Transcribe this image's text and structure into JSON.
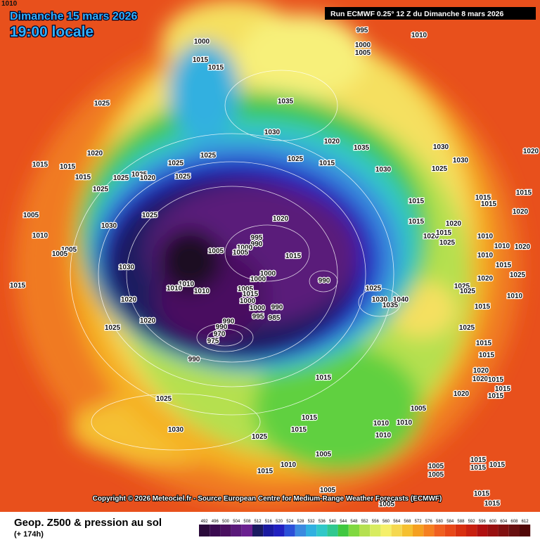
{
  "header": {
    "date": "Dimanche 15 mars 2026",
    "time": "19:00 locale",
    "run": "Run ECMWF 0.25° 12 Z du Dimanche 8 mars 2026",
    "corner": "1010"
  },
  "footer": {
    "copyright": "Copyright © 2026 Meteociel.fr - Source European Centre for Medium-Range Weather Forecasts (ECMWF)"
  },
  "legend": {
    "title": "Geop. Z500 & pression au sol",
    "subtitle": "(+ 174h)",
    "scale": [
      492,
      496,
      500,
      504,
      508,
      512,
      516,
      520,
      524,
      528,
      532,
      536,
      540,
      544,
      548,
      552,
      556,
      560,
      564,
      568,
      572,
      576,
      580,
      584,
      588,
      592,
      596,
      600,
      604,
      608,
      612
    ],
    "colors": [
      "#2a0a3a",
      "#3a0a50",
      "#4a1060",
      "#5a1a7a",
      "#6a2090",
      "#1a1a60",
      "#1a1aa0",
      "#2020c0",
      "#2a50d8",
      "#3a8ae0",
      "#30b0e0",
      "#30c8c8",
      "#30c890",
      "#40c840",
      "#80d840",
      "#b5e050",
      "#d8ec60",
      "#f5f06a",
      "#f5d850",
      "#f5c030",
      "#f5a020",
      "#f58020",
      "#f06020",
      "#e84818",
      "#d83010",
      "#c82010",
      "#b01010",
      "#981010",
      "#801010",
      "#681010",
      "#500808"
    ]
  },
  "isobars": [
    "995",
    "1010",
    "1000",
    "1005",
    "1000",
    "1015",
    "1015",
    "1025",
    "1035",
    "1030",
    "1020",
    "1035",
    "1030",
    "1030",
    "1020",
    "1020",
    "1015",
    "1015",
    "1025",
    "1025",
    "1025",
    "1020",
    "1025",
    "1015",
    "1025",
    "1025",
    "1015",
    "1025",
    "1030",
    "1025",
    "1015",
    "1015",
    "1015",
    "1015",
    "1025",
    "1020",
    "1030",
    "1020",
    "1015",
    "1020",
    "1005",
    "1010",
    "1020",
    "1015",
    "1025",
    "995",
    "990",
    "1000",
    "1005",
    "1005",
    "1010",
    "1010",
    "1020",
    "1005",
    "1005",
    "1015",
    "1030",
    "1010",
    "1015",
    "1000",
    "1000",
    "990",
    "1020",
    "1025",
    "1015",
    "1010",
    "1010",
    "1010",
    "1005",
    "1015",
    "1025",
    "1025",
    "1025",
    "1010",
    "1000",
    "1030",
    "1040",
    "1035",
    "1015",
    "1020",
    "1000",
    "990",
    "995",
    "985",
    "1020",
    "990",
    "990",
    "970",
    "975",
    "1025",
    "1025",
    "1015",
    "990",
    "1015",
    "1015",
    "1020",
    "1020",
    "1015",
    "1015",
    "1020",
    "1015",
    "1025",
    "1005",
    "1015",
    "1030",
    "1010",
    "1015",
    "1010",
    "1025",
    "1010",
    "1005",
    "1010",
    "1015",
    "1005",
    "1015",
    "1015",
    "1005",
    "1015",
    "1005",
    "1015",
    "1005",
    "1015"
  ]
}
